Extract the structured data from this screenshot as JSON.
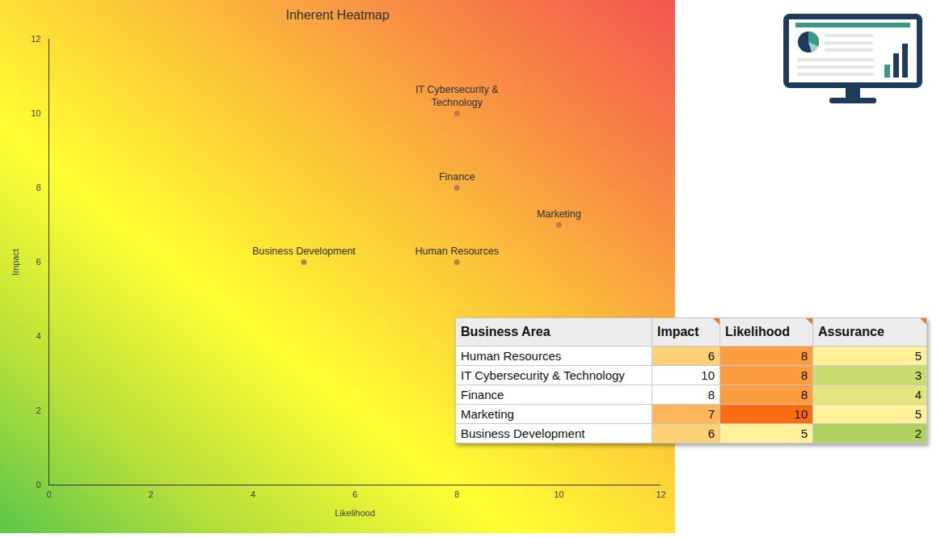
{
  "chart_data": {
    "type": "scatter",
    "title": "Inherent Heatmap",
    "x_label": "Likelihood",
    "y_label": "Impact",
    "labels": [
      "Human Resources",
      "IT Cybersecurity &\nTechnology",
      "Finance",
      "Marketing",
      "Business Development"
    ],
    "x": [
      8,
      8,
      8,
      10,
      5
    ],
    "values": [
      6,
      10,
      8,
      7,
      6
    ],
    "color": "#c8764c",
    "xlim": [
      0,
      12
    ],
    "ylim": [
      0,
      12
    ],
    "xticks": [
      0,
      2,
      4,
      6,
      8,
      10,
      12
    ],
    "yticks": [
      0,
      2,
      4,
      6,
      8,
      10,
      12
    ],
    "grid": false
  },
  "table": {
    "header": [
      "Business Area",
      "Impact",
      "Likelihood",
      "Assurance"
    ],
    "rows": [
      {
        "cells": [
          "Human Resources",
          6,
          8,
          5
        ],
        "colors": [
          "#fdd176",
          "#fb9c3e",
          "#fff199"
        ]
      },
      {
        "cells": [
          "IT Cybersecurity & Technology",
          10,
          8,
          3
        ],
        "colors": [
          "#ffffff",
          "#fb9c3e",
          "#c9dc74"
        ]
      },
      {
        "cells": [
          "Finance",
          8,
          8,
          4
        ],
        "colors": [
          "#ffffff",
          "#fb9c3e",
          "#e4e57e"
        ]
      },
      {
        "cells": [
          "Marketing",
          7,
          10,
          5
        ],
        "colors": [
          "#fdb65c",
          "#f86c12",
          "#fff199"
        ]
      },
      {
        "cells": [
          "Business Development",
          6,
          5,
          2
        ],
        "colors": [
          "#fdd176",
          "#fff199",
          "#aed262"
        ]
      }
    ]
  }
}
